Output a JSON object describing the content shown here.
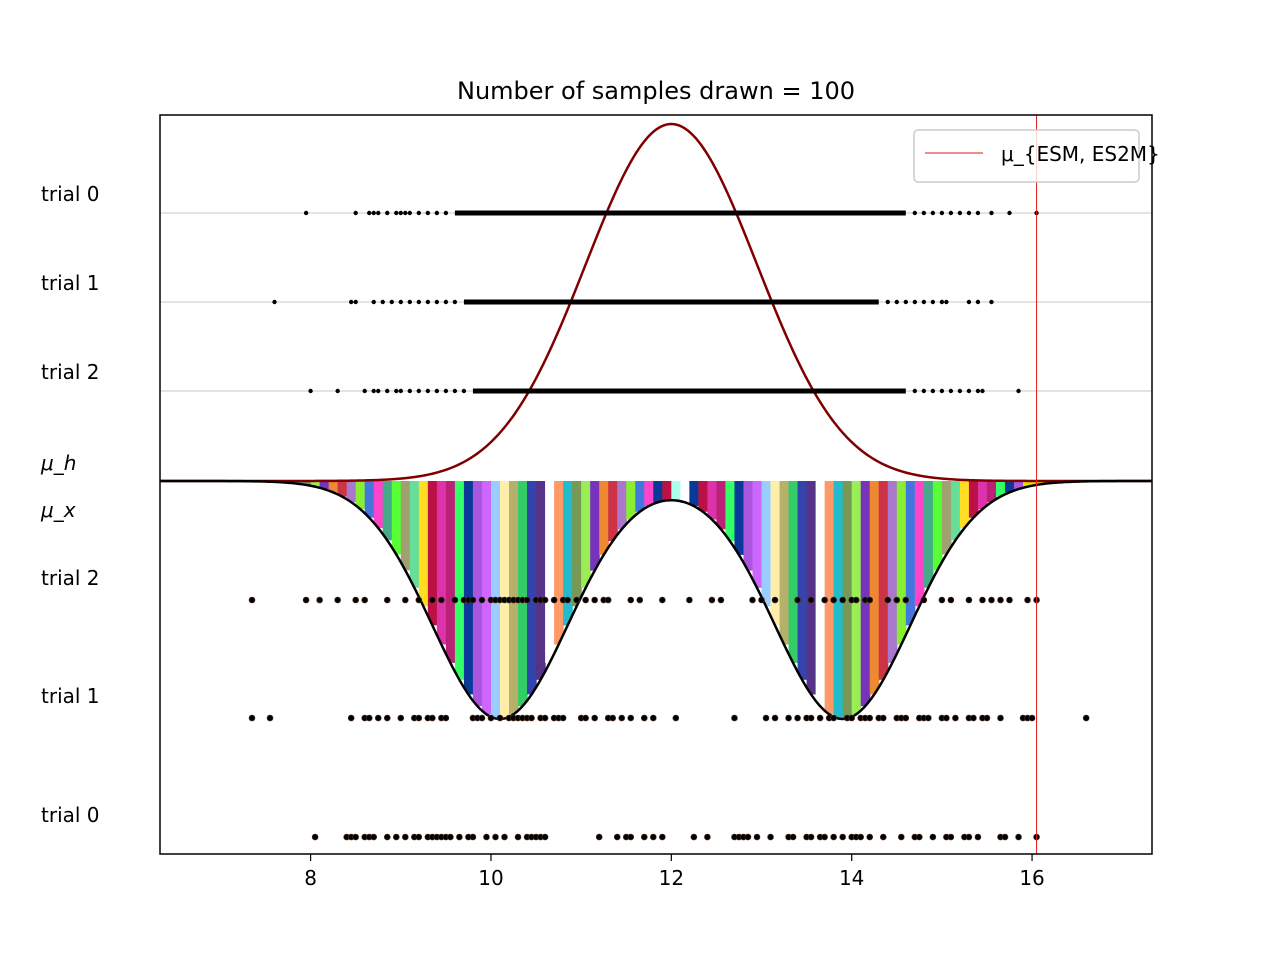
{
  "chart_data": {
    "type": "scatter",
    "title": "Number of samples drawn = 100",
    "xlabel": "",
    "ylabel": "",
    "xlim": [
      6.33,
      17.33
    ],
    "xticks": [
      8,
      10,
      12,
      14,
      16
    ],
    "xtick_labels": [
      "8",
      "10",
      "12",
      "14",
      "16"
    ],
    "grid": "horizontal lines at each trial row",
    "legend": {
      "placement": "top-right",
      "entries": [
        {
          "label": "μ_{ESM, ES2M}",
          "color": "#e31a1c",
          "kind": "line"
        }
      ]
    },
    "reference_line": {
      "x": 16.05,
      "color": "#e31a1c"
    },
    "upper_panel": {
      "label": "μ_h",
      "rows": [
        {
          "label": "trial 0",
          "dense_range": [
            9.6,
            14.6
          ],
          "sparse_points": [
            7.95,
            8.5,
            8.65,
            8.7,
            8.75,
            8.85,
            8.95,
            9.0,
            9.05,
            9.1,
            9.2,
            9.3,
            9.4,
            9.5,
            14.7,
            14.8,
            14.9,
            15.0,
            15.1,
            15.2,
            15.3,
            15.4,
            15.55,
            15.75,
            16.05
          ]
        },
        {
          "label": "trial 1",
          "dense_range": [
            9.7,
            14.3
          ],
          "sparse_points": [
            7.6,
            8.45,
            8.5,
            8.7,
            8.8,
            8.9,
            9.0,
            9.1,
            9.2,
            9.3,
            9.4,
            9.5,
            9.6,
            14.4,
            14.5,
            14.6,
            14.7,
            14.8,
            14.9,
            15.0,
            15.05,
            15.3,
            15.4,
            15.55
          ]
        },
        {
          "label": "trial 2",
          "dense_range": [
            9.8,
            14.6
          ],
          "sparse_points": [
            8.0,
            8.3,
            8.6,
            8.7,
            8.75,
            8.85,
            8.95,
            9.0,
            9.1,
            9.2,
            9.3,
            9.4,
            9.5,
            9.6,
            9.7,
            14.7,
            14.8,
            14.9,
            15.0,
            15.1,
            15.2,
            15.3,
            15.4,
            15.45,
            15.85
          ]
        }
      ],
      "density_curve": {
        "color": "#7f0000",
        "shape": "gaussian",
        "mean": 12.0,
        "sd": 0.95
      }
    },
    "lower_panel": {
      "label": "μ_x",
      "rows": [
        {
          "label": "trial 2",
          "points": [
            7.35,
            7.95,
            8.1,
            8.3,
            8.5,
            8.6,
            8.85,
            9.05,
            9.2,
            9.35,
            9.45,
            9.6,
            9.7,
            9.75,
            9.8,
            9.9,
            10.0,
            10.05,
            10.1,
            10.15,
            10.2,
            10.25,
            10.3,
            10.35,
            10.4,
            10.5,
            10.55,
            10.6,
            10.7,
            10.8,
            10.85,
            10.95,
            11.05,
            11.15,
            11.25,
            11.3,
            11.55,
            11.65,
            11.9,
            12.2,
            12.45,
            12.55,
            12.9,
            13.0,
            13.15,
            13.4,
            13.55,
            13.7,
            13.8,
            13.9,
            14.0,
            14.05,
            14.15,
            14.2,
            14.4,
            14.5,
            14.6,
            14.8,
            15.0,
            15.1,
            15.3,
            15.45,
            15.55,
            15.65,
            15.75,
            15.95,
            16.05
          ]
        },
        {
          "label": "trial 1",
          "points": [
            7.35,
            7.55,
            8.45,
            8.6,
            8.65,
            8.75,
            8.85,
            9.0,
            9.15,
            9.2,
            9.3,
            9.35,
            9.45,
            9.5,
            9.8,
            9.85,
            9.9,
            10.0,
            10.1,
            10.2,
            10.25,
            10.3,
            10.35,
            10.4,
            10.45,
            10.55,
            10.6,
            10.7,
            10.75,
            10.8,
            11.0,
            11.05,
            11.15,
            11.3,
            11.35,
            11.45,
            11.55,
            11.7,
            11.8,
            12.05,
            12.7,
            13.05,
            13.15,
            13.3,
            13.4,
            13.5,
            13.55,
            13.65,
            13.75,
            13.8,
            13.95,
            14.0,
            14.1,
            14.15,
            14.2,
            14.3,
            14.35,
            14.5,
            14.55,
            14.6,
            14.75,
            14.8,
            14.85,
            15.0,
            15.05,
            15.15,
            15.3,
            15.35,
            15.45,
            15.5,
            15.65,
            15.9,
            15.95,
            16.0,
            16.6
          ]
        },
        {
          "label": "trial 0",
          "points": [
            8.05,
            8.4,
            8.45,
            8.5,
            8.6,
            8.65,
            8.7,
            8.85,
            8.95,
            9.05,
            9.15,
            9.2,
            9.3,
            9.35,
            9.4,
            9.45,
            9.5,
            9.55,
            9.65,
            9.75,
            9.8,
            9.95,
            10.05,
            10.15,
            10.3,
            10.4,
            10.45,
            10.5,
            10.55,
            10.6,
            11.2,
            11.4,
            11.5,
            11.55,
            11.7,
            11.8,
            11.9,
            12.25,
            12.4,
            12.7,
            12.75,
            12.8,
            12.85,
            12.95,
            13.1,
            13.3,
            13.35,
            13.5,
            13.55,
            13.65,
            13.7,
            13.8,
            13.9,
            14.0,
            14.05,
            14.1,
            14.2,
            14.35,
            14.55,
            14.7,
            14.75,
            14.9,
            15.05,
            15.1,
            15.25,
            15.3,
            15.4,
            15.65,
            15.7,
            15.85,
            16.05
          ]
        }
      ],
      "density_curve": {
        "color": "#000000",
        "shape": "bimodal",
        "modes": [
          10.1,
          13.9
        ],
        "sd": 0.75
      },
      "fill": "many colored vertical bands under the curve"
    }
  }
}
